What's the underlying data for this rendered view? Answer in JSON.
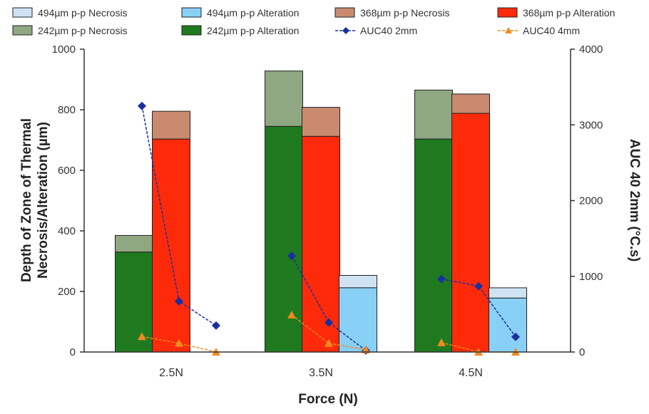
{
  "chart_data": {
    "type": "bar",
    "categories": [
      "2.5N",
      "3.5N",
      "4.5N"
    ],
    "xlabel": "Force (N)",
    "ylabel": "Depth of Zone of Thermal Necrosis/Alteration (µm)",
    "y2label": "AUC 40 2mm (°C.s)",
    "ylim": [
      0,
      1000
    ],
    "y2lim": [
      0,
      4000
    ],
    "yticks": [
      "0",
      "200",
      "400",
      "600",
      "800",
      "1000"
    ],
    "y2ticks": [
      "0",
      "1000",
      "2000",
      "3000",
      "4000"
    ],
    "legend_position": "top",
    "grid": false,
    "groups": [
      {
        "name": "242µm p-p",
        "color_alteration": "#1f7a1f",
        "color_necrosis": "#8fa882",
        "alteration": [
          330,
          745,
          703
        ],
        "necrosis_total": [
          385,
          928,
          865
        ]
      },
      {
        "name": "368µm p-p",
        "color_alteration": "#ff2a0a",
        "color_necrosis": "#c98a70",
        "alteration": [
          703,
          712,
          788
        ],
        "necrosis_total": [
          795,
          808,
          852
        ]
      },
      {
        "name": "494µm p-p",
        "color_alteration": "#88d0f5",
        "color_necrosis": "#cfe3f4",
        "alteration": [
          null,
          212,
          178
        ],
        "necrosis_total": [
          null,
          253,
          212
        ]
      }
    ],
    "lines": [
      {
        "name": "AUC40 2mm",
        "color": "#1a2fa0",
        "marker": "diamond",
        "values": [
          [
            3250,
            670,
            350
          ],
          [
            1270,
            390,
            20
          ],
          [
            965,
            870,
            200
          ]
        ]
      },
      {
        "name": "AUC40 4mm",
        "color": "#f08a1e",
        "marker": "triangle",
        "values": [
          [
            205,
            115,
            0
          ],
          [
            490,
            115,
            30
          ],
          [
            125,
            0,
            0
          ]
        ]
      }
    ]
  },
  "legend": [
    {
      "label": "494µm p-p Necrosis",
      "kind": "box",
      "color": "#cfe3f4"
    },
    {
      "label": "494µm p-p Alteration",
      "kind": "box",
      "color": "#88d0f5"
    },
    {
      "label": "368µm p-p Necrosis",
      "kind": "box",
      "color": "#c98a70"
    },
    {
      "label": "368µm p-p Alteration",
      "kind": "box",
      "color": "#ff2a0a"
    },
    {
      "label": "242µm p-p Necrosis",
      "kind": "box",
      "color": "#8fa882"
    },
    {
      "label": "242µm p-p Alteration",
      "kind": "box",
      "color": "#1f7a1f"
    },
    {
      "label": "AUC40 2mm",
      "kind": "line-diamond",
      "color": "#1a2fa0"
    },
    {
      "label": "AUC40 4mm",
      "kind": "line-triangle",
      "color": "#f08a1e"
    }
  ]
}
